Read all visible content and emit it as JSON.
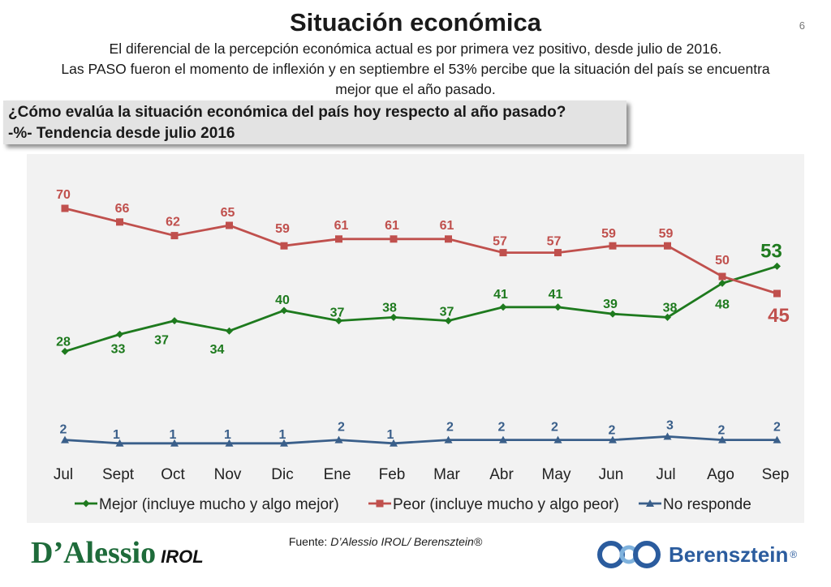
{
  "page": {
    "title": "Situación económica",
    "number": "6",
    "subtitle_lines": [
      "El diferencial de la percepción económica actual es por primera vez positivo, desde julio de 2016.",
      "Las PASO fueron el momento de inflexión y en septiembre el 53% percibe que la situación del país se encuentra",
      "mejor que el año pasado."
    ],
    "question_line1": "¿Cómo evalúa la situación económica del país hoy respecto al año pasado?",
    "question_line2": "-%- Tendencia desde julio 2016",
    "source_label": "Fuente: ",
    "source_value": "D’Alessio IROL/ Berensztein®",
    "logo_left_main": "D’Alessio",
    "logo_left_sub": "IROL",
    "logo_right_brand": "Berensztein",
    "logo_right_reg": "®"
  },
  "chart_data": {
    "type": "line",
    "title": "¿Cómo evalúa la situación económica del país hoy respecto al año pasado?",
    "categories": [
      "Jul",
      "Sept",
      "Oct",
      "Nov",
      "Dic",
      "Ene",
      "Feb",
      "Mar",
      "Abr",
      "May",
      "Jun",
      "Jul",
      "Ago",
      "Sep"
    ],
    "ylim": [
      0,
      78
    ],
    "grid": false,
    "legend_position": "bottom",
    "series": [
      {
        "name": "Mejor (incluye mucho y algo mejor)",
        "color": "#1e7a1e",
        "marker": "diamond",
        "values": [
          28,
          33,
          37,
          34,
          40,
          37,
          38,
          37,
          41,
          41,
          39,
          38,
          48,
          53
        ],
        "labels": [
          "28",
          "33",
          "37",
          "34",
          "40",
          "37",
          "38",
          "37",
          "41",
          "41",
          "39",
          "38",
          "48",
          "53"
        ]
      },
      {
        "name": "Peor (incluye mucho y algo peor)",
        "color": "#c0504d",
        "marker": "square",
        "values": [
          70,
          66,
          62,
          65,
          59,
          61,
          61,
          61,
          57,
          57,
          59,
          59,
          50,
          45
        ],
        "labels": [
          "70",
          "66",
          "62",
          "65",
          "59",
          "61",
          "61",
          "61",
          "57",
          "57",
          "59",
          "59",
          "50",
          "45"
        ]
      },
      {
        "name": "No responde",
        "color": "#3a5f8a",
        "marker": "triangle",
        "values": [
          2,
          1,
          1,
          1,
          1,
          2,
          1,
          2,
          2,
          2,
          2,
          3,
          2,
          2
        ],
        "labels": [
          "2",
          "1",
          "1",
          "1",
          "1",
          "2",
          "1",
          "2",
          "2",
          "2",
          "2",
          "3",
          "2",
          "2"
        ]
      }
    ]
  }
}
